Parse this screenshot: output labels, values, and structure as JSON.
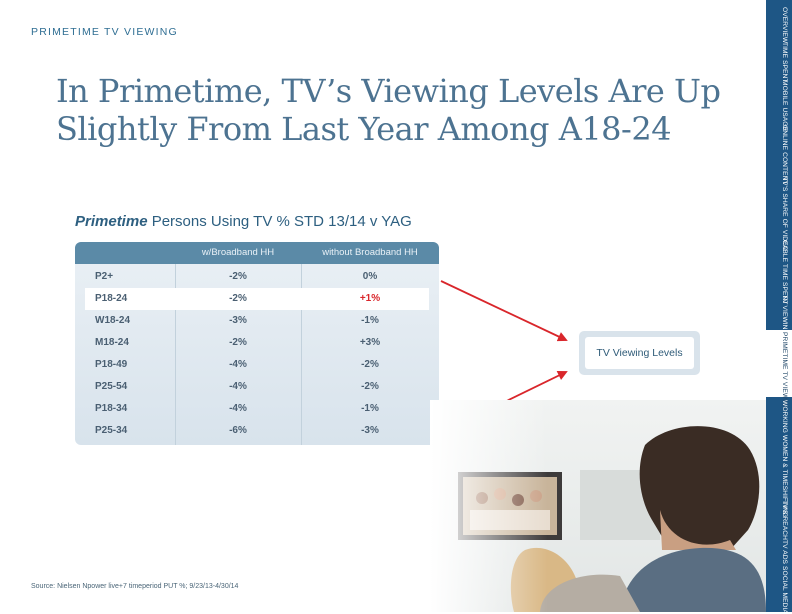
{
  "section_label": "PRIMETIME TV VIEWING",
  "title_line1": "In Primetime, TV’s Viewing Levels Are Up",
  "title_line2": "Slightly From Last Year Among A18-24",
  "subtitle": {
    "emphasis": "Primetime",
    "rest": " Persons Using TV % STD 13/14 v YAG"
  },
  "table": {
    "headers": [
      "",
      "w/Broadband HH",
      "without Broadband HH"
    ],
    "rows": [
      {
        "demo": "P2+",
        "bb": "-2%",
        "nobb": "0%"
      },
      {
        "demo": "P18-24",
        "bb": "-2%",
        "nobb": "+1%"
      },
      {
        "demo": "W18-24",
        "bb": "-3%",
        "nobb": "-1%"
      },
      {
        "demo": "M18-24",
        "bb": "-2%",
        "nobb": "+3%"
      },
      {
        "demo": "P18-49",
        "bb": "-4%",
        "nobb": "-2%"
      },
      {
        "demo": "P25-54",
        "bb": "-4%",
        "nobb": "-2%"
      },
      {
        "demo": "P18-34",
        "bb": "-4%",
        "nobb": "-1%"
      },
      {
        "demo": "P25-34",
        "bb": "-6%",
        "nobb": "-3%"
      }
    ]
  },
  "callout": "TV Viewing Levels",
  "source": "Source: Nielsen Npower live+7 timeperiod PUT %; 9/23/13-4/30/14",
  "nav": {
    "top_items": [
      "OVERVIEW",
      "TIME SPENT",
      "MOBILE USAGE",
      "ONLINE CONTENT",
      "TV'S SHARE OF VIDEO",
      "CABLE TIME SPENT",
      "TV VIEWING"
    ],
    "active_item": "PRIMETIME TV VIEWING",
    "bottom_items": [
      "WORKING WOMEN & TIMESHIFTING",
      "TV'S REACH",
      "TV ADS",
      "SOCIAL MEDIA"
    ]
  },
  "colors": {
    "nav_blue": "#1e5685",
    "header_blue": "#5b8aa7",
    "arrow_red": "#d9262b",
    "title_blue": "#4d7391"
  }
}
